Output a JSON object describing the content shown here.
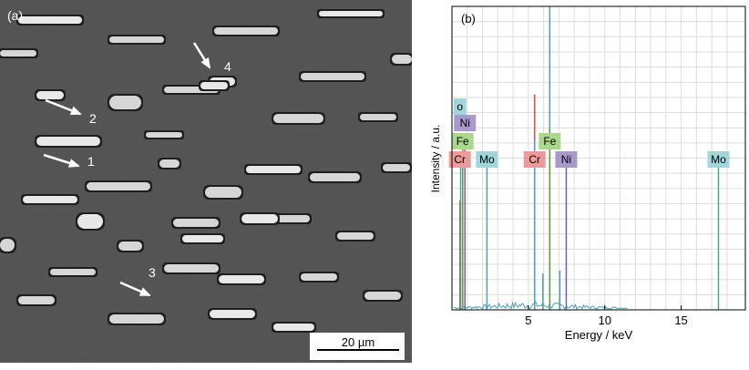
{
  "panel_a": {
    "label": "(a)",
    "markers": [
      "1",
      "2",
      "3",
      "4"
    ],
    "scale_bar": "20 µm"
  },
  "panel_b": {
    "label": "(b)",
    "colors": {
      "Mo": "#9fd6dc",
      "Ni": "#a898cc",
      "Fe": "#a9d88a",
      "Cr": "#ee9a9a",
      "O": "#9fd6dc"
    }
  },
  "chart_data": {
    "type": "bar",
    "title": "",
    "xlabel": "Energy / keV",
    "ylabel": "Intensity / a.u.",
    "xlim": [
      0,
      19.2
    ],
    "ylim": [
      0,
      1
    ],
    "x_ticks": [
      "5",
      "10",
      "15"
    ],
    "grid": true,
    "peaks": [
      {
        "x": 0.52,
        "y": 0.36,
        "color": "#d84a4a"
      },
      {
        "x": 0.57,
        "y": 0.52,
        "color": "#4aa0b8"
      },
      {
        "x": 0.7,
        "y": 0.54,
        "color": "#6a9a3a"
      },
      {
        "x": 0.85,
        "y": 0.58,
        "color": "#6f5fa8"
      },
      {
        "x": 2.29,
        "y": 0.49,
        "color": "#4aa0b8"
      },
      {
        "x": 5.41,
        "y": 0.71,
        "color": "#d84a4a"
      },
      {
        "x": 5.41,
        "y": 0.56,
        "color": "#4aa0b8"
      },
      {
        "x": 5.95,
        "y": 0.12,
        "color": "#4aa0b8"
      },
      {
        "x": 6.4,
        "y": 1.0,
        "color": "#4aa0b8"
      },
      {
        "x": 6.4,
        "y": 0.6,
        "color": "#6a9a3a"
      },
      {
        "x": 7.06,
        "y": 0.13,
        "color": "#4aa0b8"
      },
      {
        "x": 7.48,
        "y": 0.49,
        "color": "#6f5fa8"
      },
      {
        "x": 17.44,
        "y": 0.49,
        "color": "#4aa0b8"
      }
    ],
    "element_labels": [
      {
        "text": "Mo",
        "x": 2.29,
        "level": "mid",
        "key": "Mo"
      },
      {
        "text": "Cr",
        "x": 5.41,
        "level": "mid",
        "key": "Cr"
      },
      {
        "text": "Fe",
        "x": 6.4,
        "level": "high",
        "key": "Fe"
      },
      {
        "text": "Ni",
        "x": 7.48,
        "level": "mid",
        "key": "Ni"
      },
      {
        "text": "Mo",
        "x": 17.44,
        "level": "mid",
        "key": "Mo"
      },
      {
        "text": "Cr",
        "x": 0.52,
        "level": "mid",
        "key": "Cr"
      },
      {
        "text": "Fe",
        "x": 0.7,
        "level": "high",
        "key": "Fe"
      },
      {
        "text": "Ni",
        "x": 0.85,
        "level": "higher",
        "key": "Ni"
      },
      {
        "text": "o",
        "x": 0.52,
        "level": "top",
        "key": "O"
      }
    ]
  }
}
